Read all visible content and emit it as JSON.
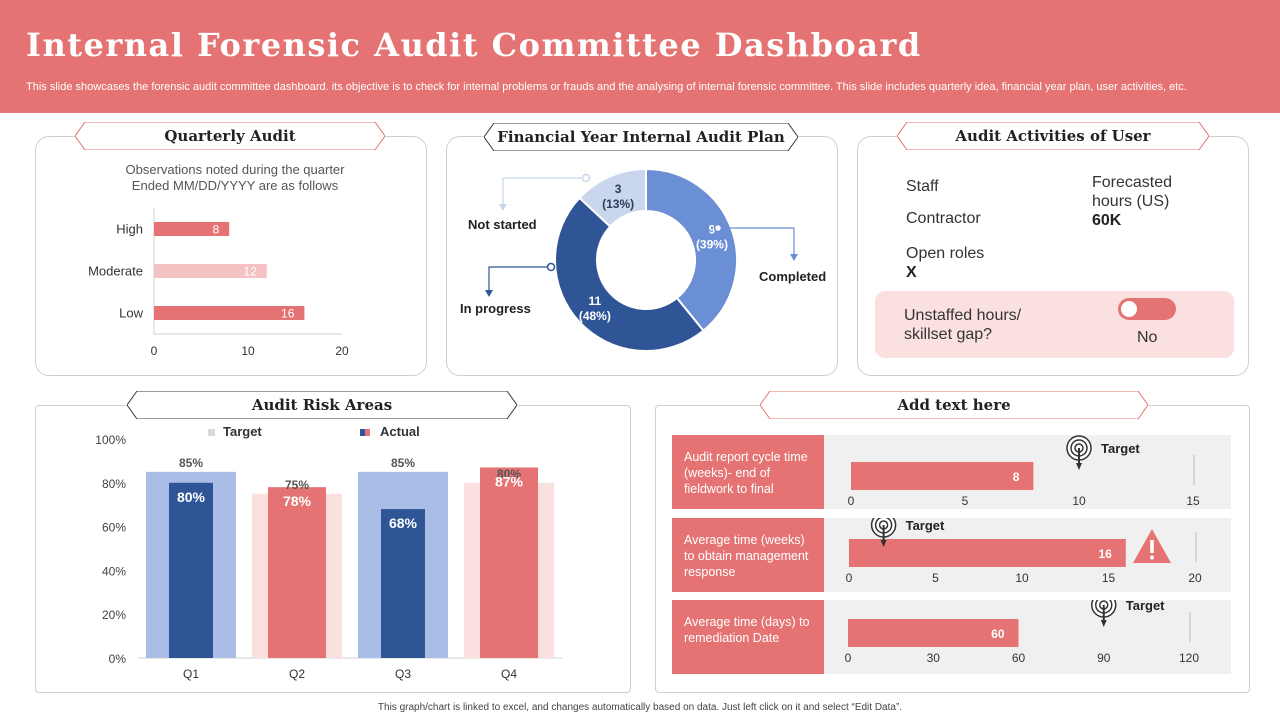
{
  "header": {
    "title": "Internal Forensic Audit Committee Dashboard",
    "subtitle": "This slide showcases the forensic audit committee dashboard. its objective is to check for internal problems or frauds and the analysing of internal forensic committee. This slide includes quarterly idea, financial year plan, user activities, etc."
  },
  "quarterly": {
    "title": "Quarterly Audit",
    "note_line1": "Observations  noted during  the quarter",
    "note_line2": "Ended MM/DD/YYYY are as follows",
    "chart_data": {
      "type": "bar",
      "orientation": "horizontal",
      "categories": [
        "High",
        "Moderate",
        "Low"
      ],
      "values": [
        8,
        12,
        16
      ],
      "xlim": [
        0,
        20
      ],
      "xticks": [
        "0",
        "10",
        "20"
      ],
      "colors": [
        "#e57373",
        "#f4c2c2",
        "#e57373"
      ]
    }
  },
  "plan": {
    "title": "Financial Year Internal Audit Plan",
    "chart_data": {
      "type": "pie",
      "donut": true,
      "slices": [
        {
          "label": "Completed",
          "value": 9,
          "pct": "(39%)",
          "color": "#6b8fd4"
        },
        {
          "label": "In progress",
          "value": 11,
          "pct": "(48%)",
          "color": "#2f5597"
        },
        {
          "label": "Not started",
          "value": 3,
          "pct": "(13%)",
          "color": "#c9d6ee"
        }
      ]
    }
  },
  "activities": {
    "title": "Audit Activities of User",
    "staff": "Staff",
    "contractor": "Contractor",
    "forecast_l1": "Forecasted",
    "forecast_l2": "hours (US)",
    "forecast_value": "60K",
    "open_roles": "Open roles",
    "open_roles_value": "X",
    "unstaffed_l1": "Unstaffed hours/",
    "unstaffed_l2": "skillset gap?",
    "toggle_value": "No"
  },
  "risk": {
    "title": "Audit Risk Areas",
    "legend_target": "Target",
    "legend_actual": "Actual",
    "chart_data": {
      "type": "bar",
      "categories": [
        "Q1",
        "Q2",
        "Q3",
        "Q4"
      ],
      "series": [
        {
          "name": "Target",
          "values": [
            85,
            75,
            85,
            80
          ],
          "colors": [
            "#a9bde6",
            "#fbe0e0",
            "#a9bde6",
            "#fbe0e0"
          ]
        },
        {
          "name": "Actual",
          "values": [
            80,
            78,
            68,
            87
          ],
          "colors": [
            "#2f5597",
            "#e57373",
            "#2f5597",
            "#e57373"
          ]
        }
      ],
      "ylim": [
        0,
        100
      ],
      "yticks": [
        "0%",
        "20%",
        "40%",
        "60%",
        "80%",
        "100%"
      ]
    }
  },
  "addtext": {
    "title": "Add text here",
    "target_label": "Target",
    "rows": [
      {
        "label": "Audit report cycle time (weeks)- end of fieldwork to final",
        "value": 8,
        "target": 10,
        "max": 15,
        "ticks": [
          "0",
          "5",
          "10",
          "15"
        ],
        "alert": false
      },
      {
        "label": "Average  time (weeks) to obtain management response",
        "value": 16,
        "target": 2,
        "max": 20,
        "ticks": [
          "0",
          "5",
          "10",
          "15",
          "20"
        ],
        "alert": true
      },
      {
        "label": "Average  time (days) to remediation Date",
        "value": 60,
        "target": 90,
        "max": 120,
        "ticks": [
          "0",
          "30",
          "60",
          "90",
          "120"
        ],
        "alert": false
      }
    ]
  },
  "footer": "This graph/chart is linked to excel, and changes automatically based on data. Just left click on it and select “Edit Data”."
}
